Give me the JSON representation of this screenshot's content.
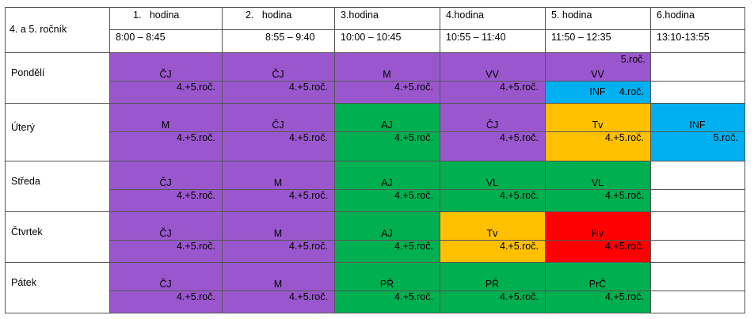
{
  "header": {
    "class_label": "4. a 5. ročník",
    "columns": [
      {
        "lesson": "1.   hodina",
        "time": "8:00 – 8:45"
      },
      {
        "lesson": "2.   hodina",
        "time": "8:55 – 9:40"
      },
      {
        "lesson": "3.hodina",
        "time": "10:00 – 10:45"
      },
      {
        "lesson": "4.hodina",
        "time": "10:55 – 11:40"
      },
      {
        "lesson": "5. hodina",
        "time": "11:50 – 12:35"
      },
      {
        "lesson": "6.hodina",
        "time": "13:10-13:55"
      }
    ]
  },
  "days": [
    {
      "name": "Pondělí",
      "cells": [
        {
          "subject": "ČJ",
          "group": "4.+5.roč.",
          "color": "#9a57cd"
        },
        {
          "subject": "ČJ",
          "group": "4.+5.roč.",
          "color": "#9a57cd"
        },
        {
          "subject": "M",
          "group": "4.+5.roč.",
          "color": "#9a57cd"
        },
        {
          "subject": "VV",
          "group": "4.+5.roč.",
          "color": "#9a57cd"
        },
        {
          "parts": [
            {
              "note": "5.roč.",
              "subject": "VV",
              "color": "#9a57cd"
            },
            {
              "subject": "INF",
              "group": "4.roč.",
              "color": "#00b0f0"
            }
          ]
        },
        null
      ]
    },
    {
      "name": "Úterý",
      "cells": [
        {
          "subject": "M",
          "group": "4.+5.roč.",
          "color": "#9a57cd"
        },
        {
          "subject": "ČJ",
          "group": "4.+5.roč.",
          "color": "#9a57cd"
        },
        {
          "subject": "AJ",
          "group": "4.+5.roč.",
          "color": "#00b050"
        },
        {
          "subject": "ČJ",
          "group": "4.+5.roč.",
          "color": "#9a57cd"
        },
        {
          "subject": "Tv",
          "group": "4.+5.roč.",
          "color": "#ffc000"
        },
        {
          "subject": "INF",
          "group": "5.roč.",
          "color": "#00b0f0"
        }
      ]
    },
    {
      "name": "Středa",
      "cells": [
        {
          "subject": "ČJ",
          "group": "4.+5.roč.",
          "color": "#9a57cd"
        },
        {
          "subject": "M",
          "group": "4.+5.roč.",
          "color": "#9a57cd"
        },
        {
          "subject": "AJ",
          "group": "4.+5.roč.",
          "color": "#00b050"
        },
        {
          "subject": "VL",
          "group": "4.+5.roč.",
          "color": "#00b050"
        },
        {
          "subject": "VL",
          "group": "4.+5.roč.",
          "color": "#00b050"
        },
        null
      ]
    },
    {
      "name": "Čtvrtek",
      "cells": [
        {
          "subject": "ČJ",
          "group": "4.+5.roč.",
          "color": "#9a57cd"
        },
        {
          "subject": "M",
          "group": "4.+5.roč.",
          "color": "#9a57cd"
        },
        {
          "subject": "AJ",
          "group": "4.+5.roč.",
          "color": "#00b050"
        },
        {
          "subject": "Tv",
          "group": "4.+5.roč.",
          "color": "#ffc000"
        },
        {
          "subject": "Hv",
          "group": "4.+5.roč.",
          "color": "#ff0000"
        },
        null
      ]
    },
    {
      "name": "Pátek",
      "cells": [
        {
          "subject": "ČJ",
          "group": "4.+5.roč.",
          "color": "#9a57cd"
        },
        {
          "subject": "M",
          "group": "4.+5.roč.",
          "color": "#9a57cd"
        },
        {
          "subject": "PŘ",
          "group": "4.+5.roč.",
          "color": "#00b050"
        },
        {
          "subject": "PŘ",
          "group": "4.+5.roč.",
          "color": "#00b050"
        },
        {
          "subject": "PrČ",
          "group": "4.+5.roč.",
          "color": "#00b050"
        },
        null
      ]
    }
  ]
}
